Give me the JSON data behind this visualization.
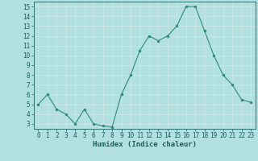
{
  "x": [
    0,
    1,
    2,
    3,
    4,
    5,
    6,
    7,
    8,
    9,
    10,
    11,
    12,
    13,
    14,
    15,
    16,
    17,
    18,
    19,
    20,
    21,
    22,
    23
  ],
  "y": [
    5.0,
    6.0,
    4.5,
    4.0,
    3.0,
    4.5,
    3.0,
    2.8,
    2.7,
    6.0,
    8.0,
    10.5,
    12.0,
    11.5,
    12.0,
    13.0,
    15.0,
    15.0,
    12.5,
    10.0,
    8.0,
    7.0,
    5.5,
    5.2
  ],
  "line_color": "#2e8b7a",
  "marker_color": "#2e8b7a",
  "bg_color": "#b2e0e0",
  "grid_color": "#d0e8e8",
  "xlabel": "Humidex (Indice chaleur)",
  "ylim": [
    2.5,
    15.5
  ],
  "xlim": [
    -0.5,
    23.5
  ],
  "yticks": [
    3,
    4,
    5,
    6,
    7,
    8,
    9,
    10,
    11,
    12,
    13,
    14,
    15
  ],
  "xticks": [
    0,
    1,
    2,
    3,
    4,
    5,
    6,
    7,
    8,
    9,
    10,
    11,
    12,
    13,
    14,
    15,
    16,
    17,
    18,
    19,
    20,
    21,
    22,
    23
  ],
  "label_color": "#1a5f5f",
  "tick_color": "#1a5f5f",
  "tick_fontsize": 5.5,
  "xlabel_fontsize": 6.5
}
